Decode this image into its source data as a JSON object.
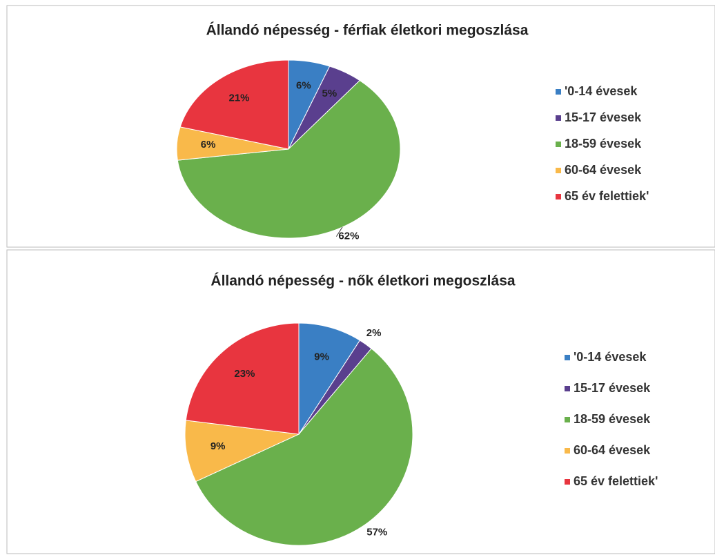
{
  "chart_data": [
    {
      "type": "pie",
      "title": "Állandó népesség - férfiak életkori megoszlása",
      "categories": [
        "'0-14 évesek",
        "15-17 évesek",
        "18-59 évesek",
        "60-64 évesek",
        "65 év felettiek'"
      ],
      "values": [
        6,
        5,
        62,
        6,
        21
      ],
      "value_labels": [
        "6%",
        "5%",
        "62%",
        "6%",
        "21%"
      ],
      "colors": [
        "#3a7fc4",
        "#5a3f8e",
        "#6ab04c",
        "#f9b94a",
        "#e8353f"
      ]
    },
    {
      "type": "pie",
      "title": "Állandó népesség - nők életkori megoszlása",
      "categories": [
        "'0-14 évesek",
        "15-17 évesek",
        "18-59 évesek",
        "60-64 évesek",
        "65 év felettiek'"
      ],
      "values": [
        9,
        2,
        57,
        9,
        23
      ],
      "value_labels": [
        "9%",
        "2%",
        "57%",
        "9%",
        "23%"
      ],
      "colors": [
        "#3a7fc4",
        "#5a3f8e",
        "#6ab04c",
        "#f9b94a",
        "#e8353f"
      ]
    }
  ]
}
